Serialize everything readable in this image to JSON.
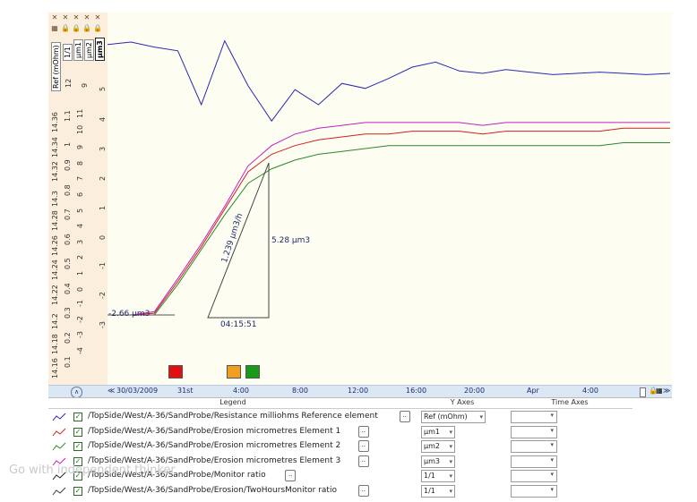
{
  "axes": {
    "ref_ticks": [
      "12",
      "9",
      "5"
    ],
    "ticks_14": [
      "14.36",
      "14.34",
      "14.32",
      "14.3",
      "14.28",
      "14.26",
      "14.24",
      "14.22",
      "14.2",
      "14.18",
      "14.16"
    ],
    "ticks_1": [
      "1.1",
      "1",
      "0.9",
      "0.8",
      "0.7",
      "0.6",
      "0.5",
      "0.4",
      "0.3",
      "0.2",
      "0.1",
      "0"
    ],
    "ticks_um3": [
      "11",
      "10",
      "9",
      "8",
      "7",
      "6",
      "5",
      "4",
      "3",
      "2",
      "1",
      "0",
      "-1",
      "-2",
      "-3",
      "-4"
    ],
    "ticks_right": [
      "4",
      "3",
      "2",
      "1",
      "0",
      "-1",
      "-2",
      "-3"
    ],
    "unit_tabs": [
      "Ref (mOhm)",
      "1/1",
      "µm1",
      "µm2",
      "µm3"
    ]
  },
  "annotations": {
    "start_value": "-2.66 µm3",
    "rate": "1.239 µm3/h",
    "delta": "5.28 µm3",
    "duration": "04:15:51"
  },
  "time_axis": {
    "labels": [
      "30/03/2009",
      "31st",
      "4:00",
      "8:00",
      "12:00",
      "16:00",
      "20:00",
      "Apr",
      "4:00"
    ]
  },
  "legend": {
    "headers": [
      "Legend",
      "Y Axes",
      "Time Axes"
    ],
    "rows": [
      {
        "name": "/TopSide/West/A-36/SandProbe/Resistance milliohms Reference element",
        "axis": "Ref (mOhm)",
        "color": "#2a2ab0"
      },
      {
        "name": "/TopSide/West/A-36/SandProbe/Erosion micrometres Element 1",
        "axis": "µm1",
        "color": "#d02020"
      },
      {
        "name": "/TopSide/West/A-36/SandProbe/Erosion micrometres Element 2",
        "axis": "µm2",
        "color": "#2a8a2a"
      },
      {
        "name": "/TopSide/West/A-36/SandProbe/Erosion micrometres Element 3",
        "axis": "µm3",
        "color": "#c020c0"
      },
      {
        "name": "/TopSide/West/A-36/SandProbe/Monitor ratio",
        "axis": "1/1",
        "color": "#222222"
      },
      {
        "name": "/TopSide/West/A-36/SandProbe/Erosion/TwoHoursMonitor ratio",
        "axis": "1/1",
        "color": "#3a3a3a"
      }
    ],
    "dots_label": ".."
  },
  "markers": [
    "red",
    "orange",
    "green"
  ],
  "watermark": "Go with independent thinker",
  "chart_data": {
    "type": "line",
    "series": [
      {
        "name": "Resistance milliohms Reference element",
        "values": [
          12.3,
          12.5,
          12.1,
          11.8,
          7.5,
          12.6,
          9.0,
          6.2,
          8.7,
          7.5,
          9.2,
          8.8,
          9.6,
          10.5,
          10.9,
          10.2,
          10.0,
          10.3,
          10.1,
          9.9,
          10.0,
          10.1,
          10.0,
          9.9,
          10.0
        ]
      },
      {
        "name": "Erosion micrometres Element 1",
        "values": [
          -2.66,
          -2.66,
          -2.6,
          -1.5,
          -0.3,
          1.0,
          2.3,
          2.9,
          3.2,
          3.4,
          3.5,
          3.6,
          3.6,
          3.7,
          3.7,
          3.7,
          3.6,
          3.7,
          3.7,
          3.7,
          3.7,
          3.7,
          3.8,
          3.8,
          3.8
        ]
      },
      {
        "name": "Erosion micrometres Element 2",
        "values": [
          -2.66,
          -2.66,
          -2.66,
          -1.6,
          -0.4,
          0.8,
          1.9,
          2.4,
          2.7,
          2.9,
          3.0,
          3.1,
          3.2,
          3.2,
          3.2,
          3.2,
          3.2,
          3.2,
          3.2,
          3.2,
          3.2,
          3.2,
          3.3,
          3.3,
          3.3
        ]
      },
      {
        "name": "Erosion micrometres Element 3",
        "values": [
          -2.66,
          -2.66,
          -2.55,
          -1.4,
          -0.2,
          1.1,
          2.5,
          3.2,
          3.6,
          3.8,
          3.9,
          4.0,
          4.0,
          4.0,
          4.0,
          4.0,
          3.9,
          4.0,
          4.0,
          4.0,
          4.0,
          4.0,
          4.0,
          4.0,
          4.0
        ]
      }
    ]
  }
}
